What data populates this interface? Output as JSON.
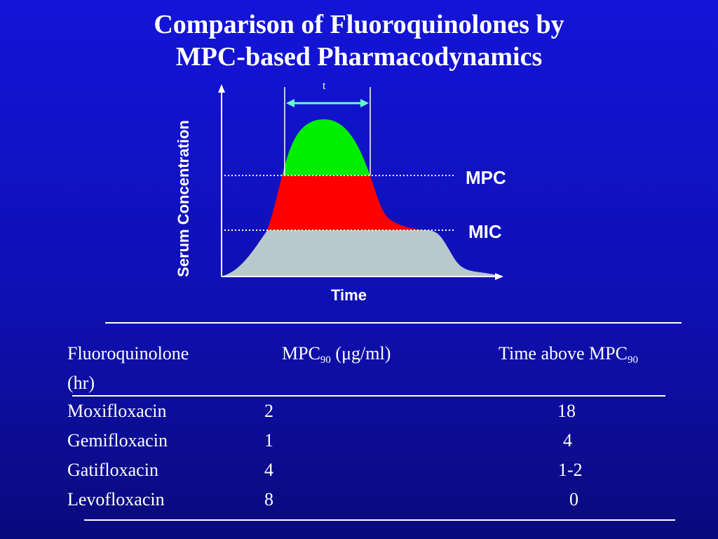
{
  "title": {
    "line1": "Comparison of Fluoroquinolones by",
    "line2": "MPC-based Pharmacodynamics"
  },
  "diagram": {
    "y_axis_label": "Serum Concentration",
    "x_axis_label": "Time",
    "mpc_label": "MPC",
    "mic_label": "MIC",
    "interval_label": "t",
    "colors": {
      "above_mpc": "#00ee00",
      "between_mic_mpc": "#ff0000",
      "below_mic": "#b8c8cc"
    }
  },
  "table": {
    "headers": {
      "drug": "Fluoroquinolone",
      "mpc_main": "MPC",
      "mpc_sub": "90",
      "mpc_unit_open": " (",
      "mpc_mu": "μ",
      "mpc_unit_close": "g/ml)",
      "time_main": "Time above MPC",
      "time_sub": "90",
      "time_unit": "(hr)"
    },
    "rows": [
      {
        "drug": "Moxifloxacin",
        "mpc": "2",
        "time": "18"
      },
      {
        "drug": "Gemifloxacin",
        "mpc": "1",
        "time": "4"
      },
      {
        "drug": "Gatifloxacin",
        "mpc": "4",
        "time": "1-2"
      },
      {
        "drug": "Levofloxacin",
        "mpc": "8",
        "time": "0"
      }
    ]
  }
}
